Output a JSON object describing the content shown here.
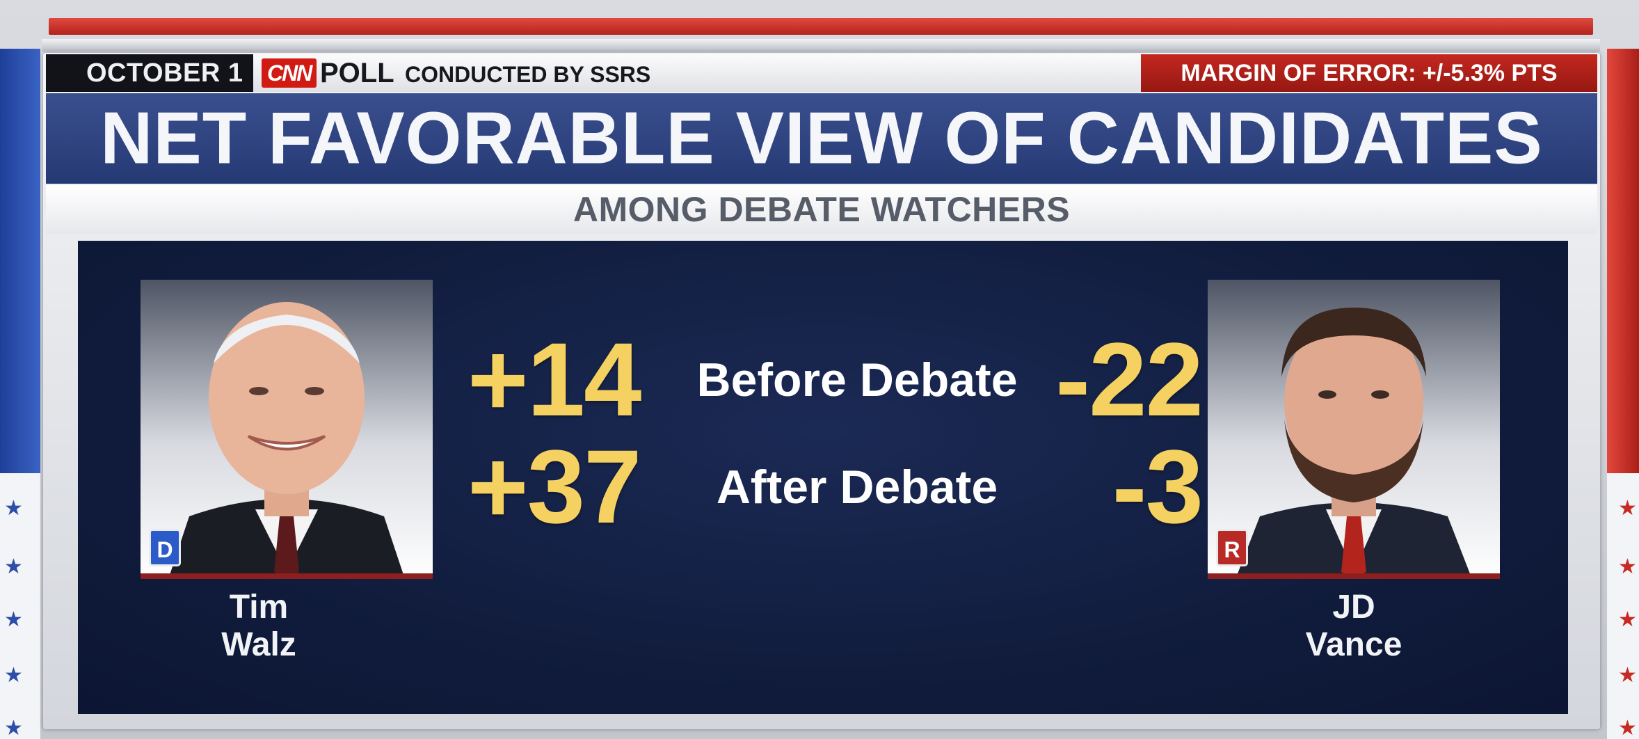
{
  "header": {
    "date": "OCTOBER 1",
    "network_logo": "CNN",
    "poll_label": "POLL",
    "conducted_by": "CONDUCTED BY SSRS",
    "margin_of_error": "MARGIN OF ERROR: +/-5.3% PTS"
  },
  "title": "NET FAVORABLE VIEW OF CANDIDATES",
  "subtitle": "AMONG DEBATE WATCHERS",
  "rows": {
    "before_label": "Before Debate",
    "after_label": "After Debate"
  },
  "candidates": {
    "walz": {
      "first_name": "Tim",
      "last_name": "Walz",
      "party": "D",
      "party_color": "#2a5bc8",
      "before": "+14",
      "after": "+37"
    },
    "vance": {
      "first_name": "JD",
      "last_name": "Vance",
      "party": "R",
      "party_color": "#b72a25",
      "before": "-22",
      "after": "-3"
    }
  },
  "colors": {
    "number_gold": "#f4d160",
    "panel_navy": "#111c3d",
    "title_band_blue": "#2d4280",
    "accent_red": "#c42820"
  }
}
